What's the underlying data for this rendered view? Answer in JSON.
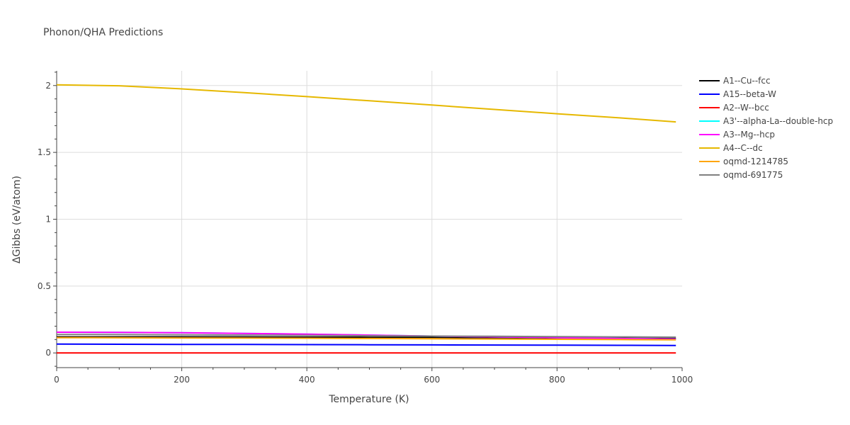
{
  "chart_data": {
    "type": "line",
    "title": "Phonon/QHA Predictions",
    "xlabel": "Temperature (K)",
    "ylabel": "ΔGibbs (eV/atom)",
    "xlim": [
      0,
      1000
    ],
    "ylim": [
      -0.11,
      2.11
    ],
    "xticks": [
      0,
      200,
      400,
      600,
      800,
      1000
    ],
    "yticks": [
      0,
      0.5,
      1,
      1.5,
      2
    ],
    "ytick_labels": [
      "0",
      "0.5",
      "1",
      "1.5",
      "2"
    ],
    "grid": true,
    "legend_position": "right",
    "x": [
      0,
      100,
      200,
      300,
      400,
      500,
      600,
      700,
      800,
      900,
      990
    ],
    "series": [
      {
        "name": "A1--Cu--fcc",
        "color": "#000000",
        "values": [
          0.12,
          0.12,
          0.12,
          0.119,
          0.118,
          0.117,
          0.116,
          0.114,
          0.112,
          0.11,
          0.108
        ]
      },
      {
        "name": "A15--beta-W",
        "color": "#0000ff",
        "values": [
          0.066,
          0.065,
          0.064,
          0.063,
          0.062,
          0.061,
          0.06,
          0.059,
          0.058,
          0.057,
          0.056
        ]
      },
      {
        "name": "A2--W--bcc",
        "color": "#ff0000",
        "values": [
          0,
          0,
          0,
          0,
          0,
          0,
          0,
          0,
          0,
          0,
          0
        ]
      },
      {
        "name": "A3'--alpha-La--double-hcp",
        "color": "#00ffff",
        "values": [
          0.155,
          0.154,
          0.151,
          0.146,
          0.14,
          0.133,
          0.126,
          0.12,
          0.114,
          0.108,
          0.103
        ]
      },
      {
        "name": "A3--Mg--hcp",
        "color": "#ff00ff",
        "values": [
          0.155,
          0.154,
          0.151,
          0.146,
          0.14,
          0.133,
          0.126,
          0.12,
          0.114,
          0.108,
          0.103
        ]
      },
      {
        "name": "A4--C--dc",
        "color": "#e6b800",
        "values": [
          2.005,
          1.998,
          1.975,
          1.947,
          1.917,
          1.886,
          1.854,
          1.821,
          1.789,
          1.758,
          1.728
        ]
      },
      {
        "name": "oqmd-1214785",
        "color": "#ffa500",
        "values": [
          0.114,
          0.113,
          0.112,
          0.111,
          0.11,
          0.108,
          0.106,
          0.104,
          0.102,
          0.1,
          0.098
        ]
      },
      {
        "name": "oqmd-691775",
        "color": "#808080",
        "values": [
          0.138,
          0.137,
          0.135,
          0.133,
          0.131,
          0.128,
          0.126,
          0.124,
          0.122,
          0.12,
          0.118
        ]
      }
    ]
  }
}
